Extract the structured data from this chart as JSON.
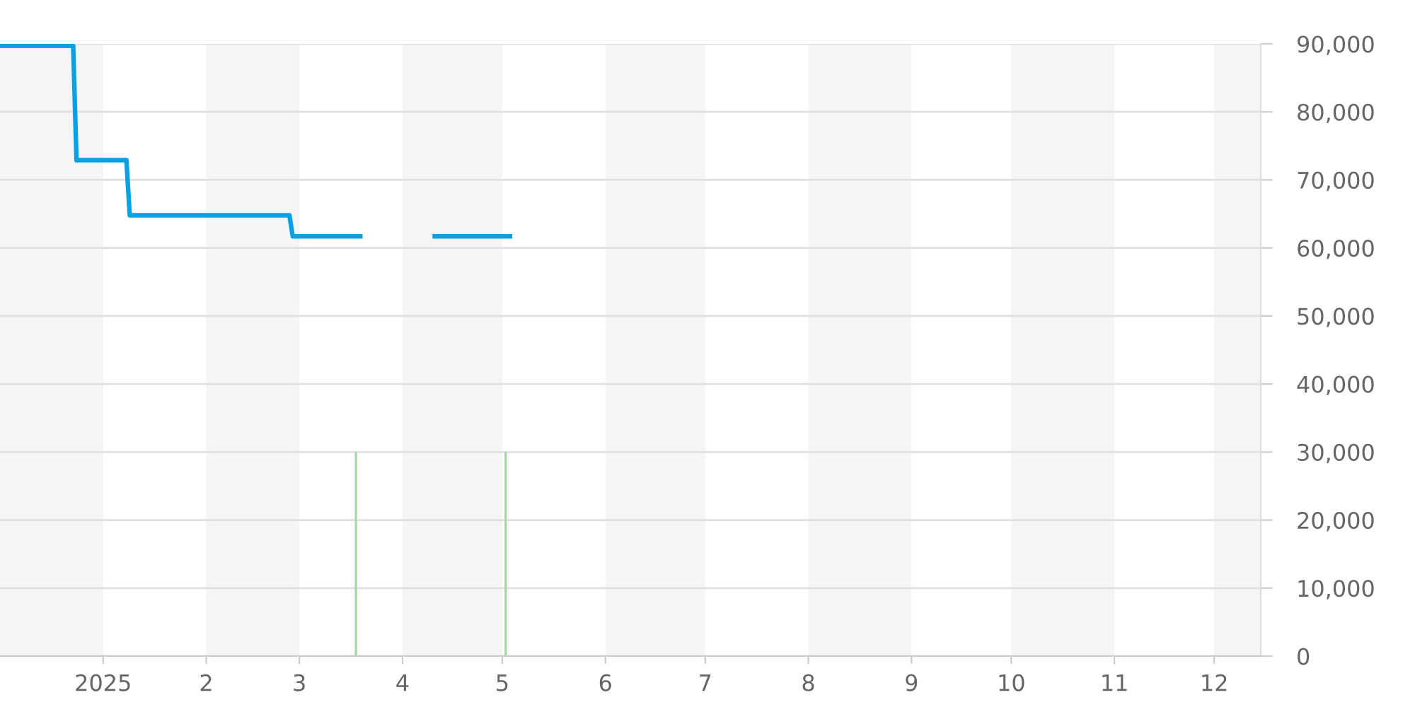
{
  "chart_data": {
    "type": "line",
    "xlim": [
      "2024-12-01",
      "2025-12-15"
    ],
    "xticks": [
      {
        "value": "2025-01-01",
        "label": "2025"
      },
      {
        "value": "2025-02-01",
        "label": "2"
      },
      {
        "value": "2025-03-01",
        "label": "3"
      },
      {
        "value": "2025-04-01",
        "label": "4"
      },
      {
        "value": "2025-05-01",
        "label": "5"
      },
      {
        "value": "2025-06-01",
        "label": "6"
      },
      {
        "value": "2025-07-01",
        "label": "7"
      },
      {
        "value": "2025-08-01",
        "label": "8"
      },
      {
        "value": "2025-09-01",
        "label": "9"
      },
      {
        "value": "2025-10-01",
        "label": "10"
      },
      {
        "value": "2025-11-01",
        "label": "11"
      },
      {
        "value": "2025-12-01",
        "label": "12"
      }
    ],
    "ylim": [
      0,
      90000
    ],
    "yticks": [
      0,
      {
        "value": 10000,
        "label": "10,000"
      },
      {
        "value": 20000,
        "label": "20,000"
      },
      {
        "value": 30000,
        "label": "30,000"
      },
      {
        "value": 40000,
        "label": "40,000"
      },
      {
        "value": 50000,
        "label": "50,000"
      },
      {
        "value": 60000,
        "label": "60,000"
      },
      {
        "value": 70000,
        "label": "70,000"
      },
      {
        "value": 80000,
        "label": "80,000"
      },
      {
        "value": 90000,
        "label": "90,000"
      }
    ],
    "grid": "y",
    "legend": false,
    "bands": [
      {
        "axis": "x",
        "from": "2024-12-01",
        "to": "2025-01-01",
        "color": "#f5f5f5"
      },
      {
        "axis": "x",
        "from": "2025-02-01",
        "to": "2025-03-01",
        "color": "#f5f5f5"
      },
      {
        "axis": "x",
        "from": "2025-04-01",
        "to": "2025-05-01",
        "color": "#f5f5f5"
      },
      {
        "axis": "x",
        "from": "2025-06-01",
        "to": "2025-07-01",
        "color": "#f5f5f5"
      },
      {
        "axis": "x",
        "from": "2025-08-01",
        "to": "2025-09-01",
        "color": "#f5f5f5"
      },
      {
        "axis": "x",
        "from": "2025-10-01",
        "to": "2025-11-01",
        "color": "#f5f5f5"
      },
      {
        "axis": "x",
        "from": "2025-12-01",
        "to": "2025-12-15",
        "color": "#f5f5f5"
      }
    ],
    "series": [
      {
        "type": "bar",
        "color": "#a5d8a7",
        "x": [
          "2025-03-18",
          "2025-05-02"
        ],
        "values": [
          30000,
          30000
        ]
      },
      {
        "color": "#0aa0e2",
        "x": [
          "2024-12-01",
          "2024-12-23",
          "2024-12-24",
          "2025-01-08",
          "2025-01-09",
          "2025-02-26",
          "2025-02-27",
          "2025-03-20",
          "2025-03-21",
          "2025-04-10",
          "2025-05-04"
        ],
        "values": [
          89700,
          89700,
          72900,
          72900,
          64800,
          64800,
          61700,
          61700,
          null,
          61700,
          61700
        ]
      }
    ]
  }
}
